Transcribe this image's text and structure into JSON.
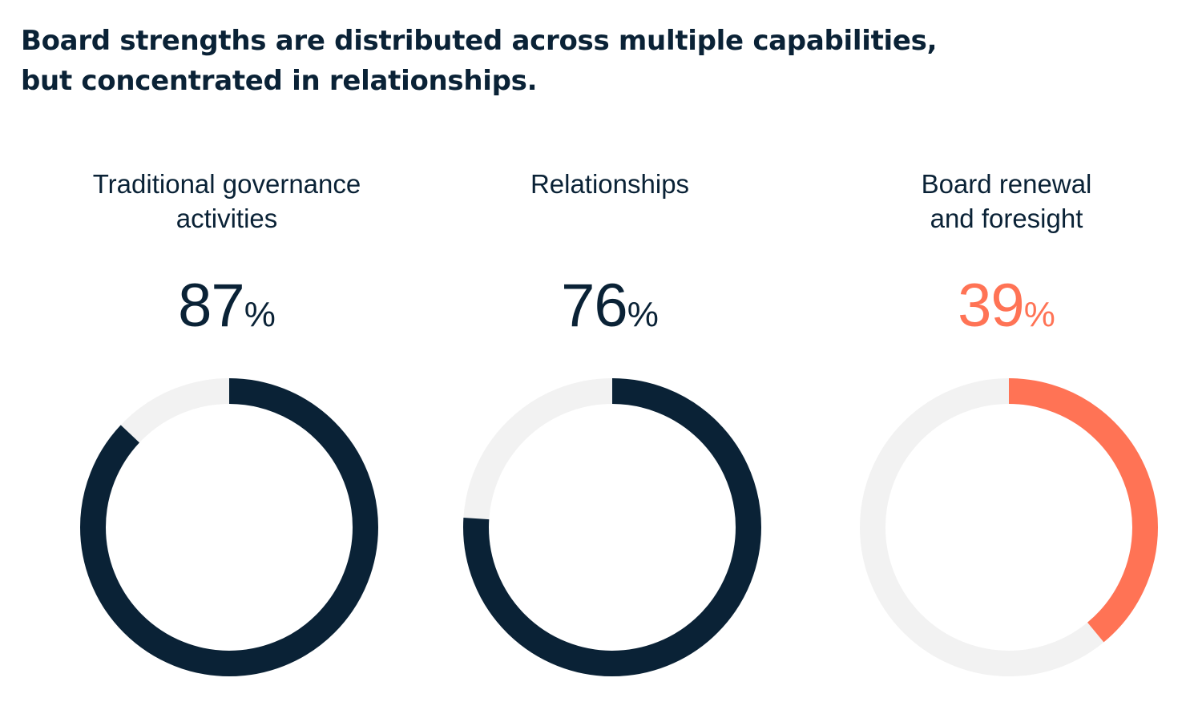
{
  "headline": {
    "line1": "Board strengths are distributed across multiple capabilities,",
    "line2": "but concentrated in relationships."
  },
  "colors": {
    "track": "#f2f2f2",
    "navy": "#0a2236",
    "coral": "#ff7355"
  },
  "chart_data": {
    "type": "pie",
    "title": "Board strengths are distributed across multiple capabilities, but concentrated in relationships.",
    "unit": "%",
    "categories": [
      {
        "label_lines": [
          "Traditional governance",
          "activities"
        ],
        "value": 87,
        "value_text": "87",
        "color": "#0a2236"
      },
      {
        "label_lines": [
          "Relationships"
        ],
        "value": 76,
        "value_text": "76",
        "color": "#0a2236"
      },
      {
        "label_lines": [
          "Board renewal",
          "and foresight"
        ],
        "value": 39,
        "value_text": "39",
        "color": "#ff7355"
      }
    ]
  }
}
